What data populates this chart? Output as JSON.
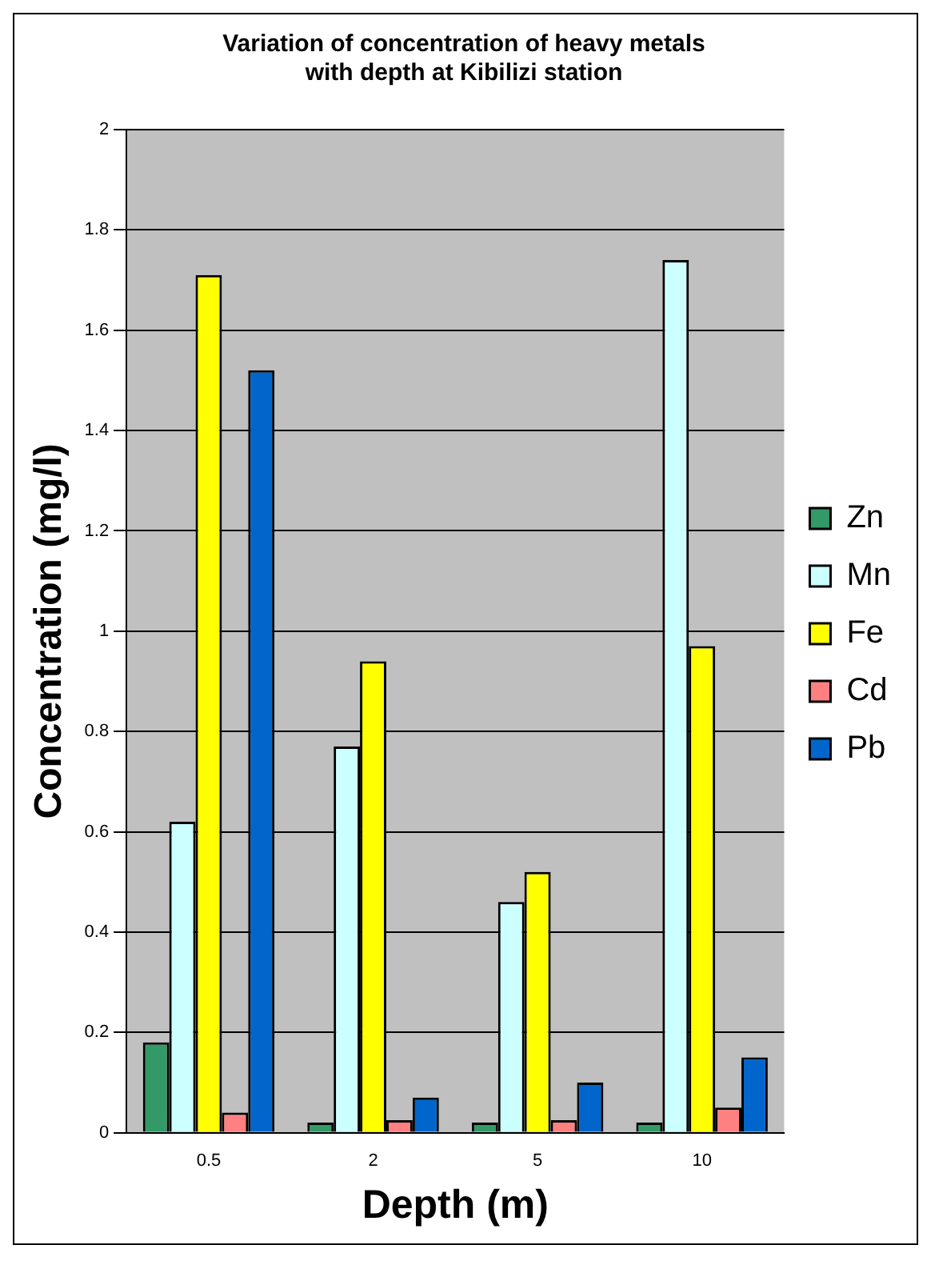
{
  "chart_data": {
    "type": "bar",
    "title": "Variation of concentration of heavy metals\nwith depth at Kibilizi station",
    "xlabel": "Depth (m)",
    "ylabel": "Concentration (mg/l)",
    "categories": [
      "0.5",
      "2",
      "5",
      "10"
    ],
    "series": [
      {
        "name": "Zn",
        "color": "#339966",
        "values": [
          0.18,
          0.02,
          0.02,
          0.02
        ]
      },
      {
        "name": "Mn",
        "color": "#ccffff",
        "values": [
          0.62,
          0.77,
          0.46,
          1.74
        ]
      },
      {
        "name": "Fe",
        "color": "#ffff00",
        "values": [
          1.71,
          0.94,
          0.52,
          0.97
        ]
      },
      {
        "name": "Cd",
        "color": "#ff8080",
        "values": [
          0.04,
          0.025,
          0.025,
          0.05
        ]
      },
      {
        "name": "Pb",
        "color": "#0066cc",
        "values": [
          1.52,
          0.07,
          0.1,
          0.15
        ]
      }
    ],
    "ylim": [
      0,
      2
    ],
    "yticks": [
      0,
      0.2,
      0.4,
      0.6,
      0.8,
      1,
      1.2,
      1.4,
      1.6,
      1.8,
      2
    ],
    "grid": "y",
    "legend": "right"
  }
}
